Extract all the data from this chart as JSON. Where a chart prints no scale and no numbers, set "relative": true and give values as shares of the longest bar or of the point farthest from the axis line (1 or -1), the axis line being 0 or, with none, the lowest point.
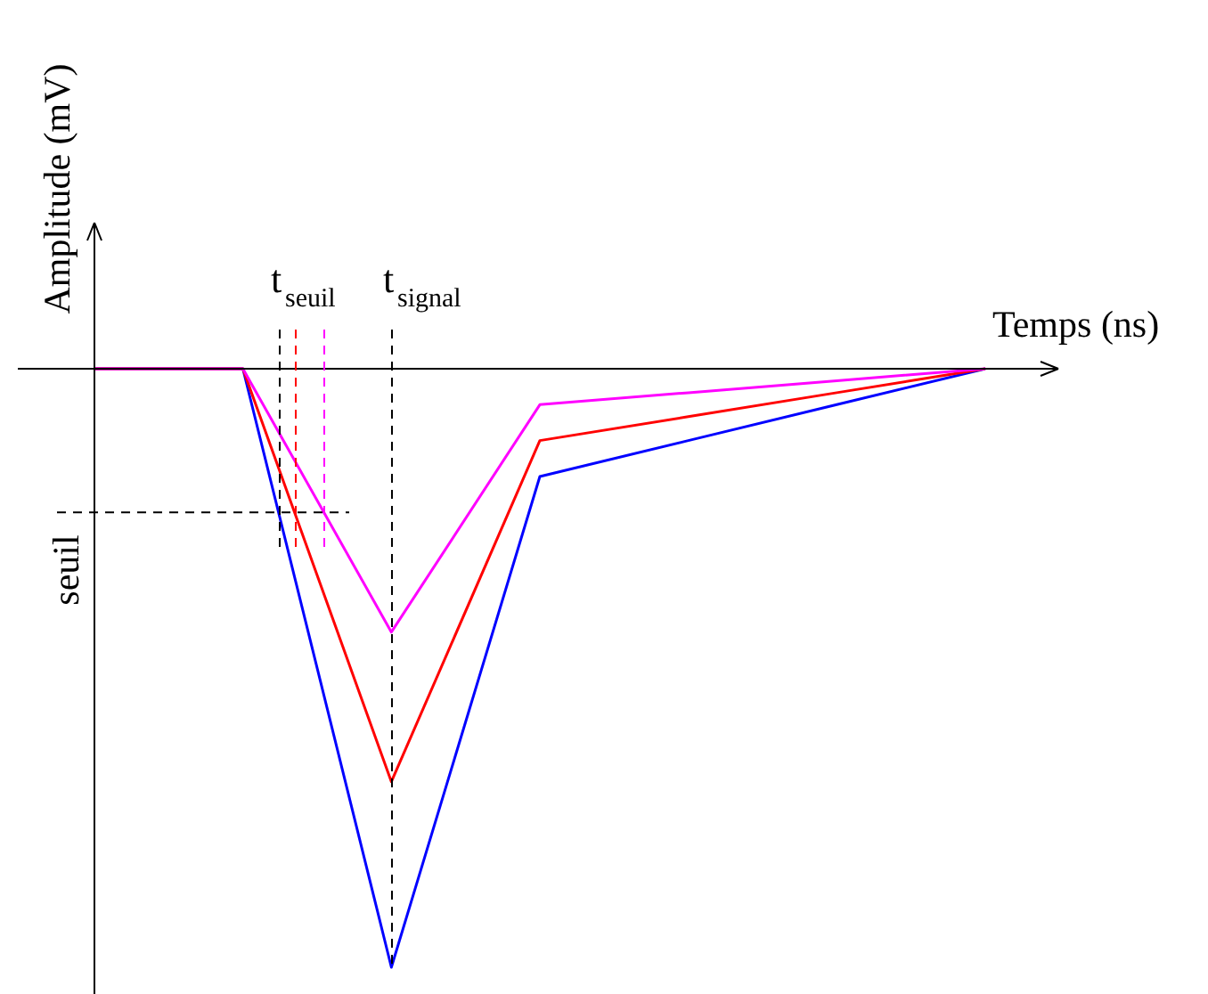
{
  "chart_data": {
    "type": "line",
    "relative": true,
    "xlabel": "Temps (ns)",
    "ylabel": "Amplitude (mV)",
    "categories": [
      null,
      null,
      null,
      null,
      null,
      null,
      null
    ],
    "series": [
      {
        "color": "#0000ff",
        "values": [
          0,
          0,
          -1,
          -0.18,
          -0.12,
          -0.06,
          0
        ]
      },
      {
        "color": "#ff0000",
        "values": [
          0,
          0,
          -0.69,
          -0.12,
          -0.08,
          -0.04,
          0
        ]
      },
      {
        "color": "#ff00ff",
        "values": [
          0,
          0,
          -0.44,
          -0.06,
          -0.04,
          -0.02,
          0
        ]
      }
    ],
    "ref_lines": [
      {
        "axis": "y",
        "value": -0.24,
        "label": "seuil",
        "color": "#000000",
        "line_style": "dashed"
      }
    ],
    "annotations": [
      "t$_{seuil}$",
      "t$_{signal}$"
    ],
    "marker": "none",
    "line_style": "solid"
  }
}
